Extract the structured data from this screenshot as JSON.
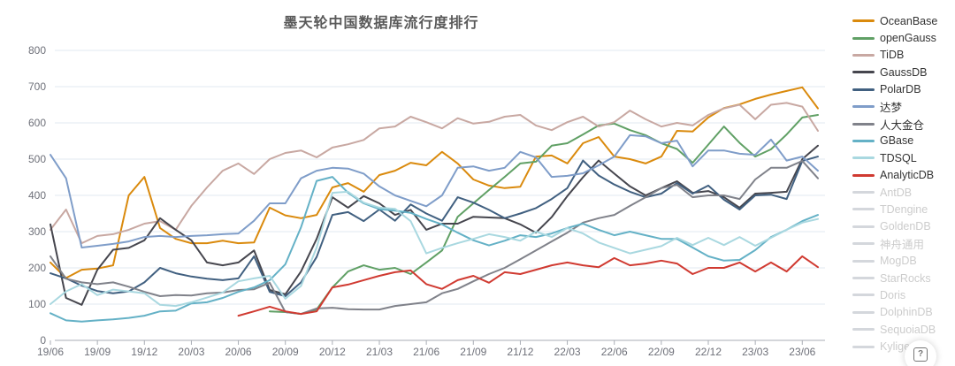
{
  "title": "墨天轮中国数据库流行度排行",
  "help_button": {
    "glyph": "?"
  },
  "axis_style": {
    "label_color": "#6e7079",
    "grid_color": "#e2e8f2",
    "axis_line_color": "#a9adb5"
  },
  "chart_data": {
    "type": "line",
    "title": "墨天轮中国数据库流行度排行",
    "xlabel": "",
    "ylabel": "",
    "ylim": [
      0,
      800
    ],
    "yticks": [
      0,
      100,
      200,
      300,
      400,
      500,
      600,
      700,
      800
    ],
    "grid": true,
    "legend_position": "right",
    "x_tick_labels": [
      "19/06",
      "19/09",
      "19/12",
      "20/03",
      "20/06",
      "20/09",
      "20/12",
      "21/03",
      "21/06",
      "21/09",
      "21/12",
      "22/03",
      "22/06",
      "22/09",
      "22/12",
      "23/03",
      "23/06"
    ],
    "x": [
      "19/06",
      "19/07",
      "19/08",
      "19/09",
      "19/10",
      "19/11",
      "19/12",
      "20/01",
      "20/02",
      "20/03",
      "20/04",
      "20/05",
      "20/06",
      "20/07",
      "20/08",
      "20/09",
      "20/10",
      "20/11",
      "20/12",
      "21/01",
      "21/02",
      "21/03",
      "21/04",
      "21/05",
      "21/06",
      "21/07",
      "21/08",
      "21/09",
      "21/10",
      "21/11",
      "21/12",
      "22/01",
      "22/02",
      "22/03",
      "22/04",
      "22/05",
      "22/06",
      "22/07",
      "22/08",
      "22/09",
      "22/10",
      "22/11",
      "22/12",
      "23/01",
      "23/02",
      "23/03",
      "23/04",
      "23/05",
      "23/06",
      "23/07"
    ],
    "series": [
      {
        "name": "OceanBase",
        "color": "#da8a0d",
        "active": true,
        "values": [
          215,
          172,
          195,
          198,
          207,
          400,
          451,
          310,
          280,
          268,
          268,
          275,
          268,
          270,
          366,
          345,
          337,
          346,
          422,
          434,
          410,
          456,
          468,
          490,
          483,
          520,
          488,
          444,
          427,
          420,
          424,
          507,
          510,
          488,
          544,
          561,
          507,
          500,
          488,
          507,
          578,
          576,
          615,
          641,
          651,
          666,
          678,
          688,
          698,
          640
        ]
      },
      {
        "name": "openGauss",
        "color": "#60a065",
        "active": true,
        "values": [
          null,
          null,
          null,
          null,
          null,
          null,
          null,
          null,
          null,
          null,
          null,
          null,
          null,
          null,
          80,
          78,
          73,
          85,
          146,
          190,
          207,
          195,
          200,
          183,
          215,
          248,
          341,
          378,
          415,
          451,
          488,
          493,
          537,
          544,
          568,
          593,
          598,
          580,
          566,
          544,
          528,
          490,
          540,
          590,
          545,
          507,
          527,
          568,
          615,
          622
        ]
      },
      {
        "name": "TiDB",
        "color": "#c8a8a2",
        "active": true,
        "values": [
          305,
          361,
          268,
          288,
          293,
          305,
          322,
          329,
          305,
          371,
          422,
          468,
          488,
          459,
          500,
          517,
          524,
          505,
          532,
          541,
          553,
          585,
          590,
          617,
          602,
          585,
          613,
          598,
          603,
          617,
          622,
          593,
          580,
          602,
          617,
          590,
          602,
          634,
          610,
          590,
          600,
          593,
          622,
          640,
          650,
          610,
          650,
          655,
          645,
          578
        ]
      },
      {
        "name": "GaussDB",
        "color": "#46464e",
        "active": true,
        "values": [
          320,
          117,
          98,
          195,
          250,
          255,
          276,
          337,
          305,
          276,
          215,
          207,
          215,
          248,
          139,
          127,
          190,
          280,
          395,
          366,
          398,
          378,
          346,
          360,
          305,
          322,
          322,
          341,
          339,
          337,
          320,
          297,
          340,
          398,
          450,
          496,
          460,
          425,
          400,
          420,
          439,
          407,
          412,
          395,
          366,
          405,
          407,
          410,
          500,
          537
        ]
      },
      {
        "name": "PolarDB",
        "color": "#416080",
        "active": true,
        "values": [
          185,
          171,
          151,
          136,
          130,
          135,
          160,
          200,
          185,
          176,
          170,
          166,
          171,
          232,
          134,
          122,
          160,
          230,
          346,
          354,
          329,
          361,
          330,
          375,
          350,
          330,
          395,
          380,
          360,
          337,
          350,
          365,
          390,
          420,
          496,
          455,
          430,
          410,
          395,
          405,
          434,
          405,
          427,
          388,
          361,
          400,
          402,
          390,
          495,
          507
        ]
      },
      {
        "name": "达梦",
        "color": "#7f9dc9",
        "active": true,
        "values": [
          512,
          447,
          256,
          261,
          266,
          273,
          285,
          288,
          285,
          288,
          290,
          293,
          295,
          330,
          378,
          378,
          447,
          468,
          476,
          474,
          460,
          425,
          400,
          385,
          370,
          400,
          476,
          480,
          468,
          476,
          520,
          505,
          451,
          454,
          461,
          483,
          507,
          566,
          563,
          544,
          551,
          480,
          524,
          524,
          515,
          512,
          554,
          496,
          507,
          468
        ]
      },
      {
        "name": "人大金仓",
        "color": "#80828a",
        "active": true,
        "values": [
          232,
          170,
          160,
          155,
          160,
          148,
          134,
          122,
          125,
          124,
          130,
          132,
          139,
          141,
          159,
          78,
          73,
          88,
          90,
          86,
          85,
          85,
          95,
          100,
          105,
          130,
          142,
          163,
          183,
          200,
          224,
          248,
          273,
          297,
          325,
          337,
          346,
          371,
          395,
          420,
          429,
          395,
          400,
          400,
          390,
          444,
          476,
          476,
          495,
          447
        ]
      },
      {
        "name": "GBase",
        "color": "#64b1c6",
        "active": true,
        "values": [
          75,
          55,
          52,
          55,
          58,
          62,
          68,
          80,
          82,
          102,
          105,
          117,
          134,
          146,
          166,
          210,
          312,
          440,
          451,
          407,
          378,
          362,
          358,
          352,
          335,
          320,
          297,
          276,
          262,
          275,
          290,
          285,
          295,
          310,
          322,
          305,
          290,
          300,
          290,
          280,
          280,
          256,
          232,
          220,
          222,
          249,
          285,
          305,
          329,
          346
        ]
      },
      {
        "name": "TDSQL",
        "color": "#a9d8e0",
        "active": true,
        "values": [
          100,
          135,
          155,
          125,
          140,
          135,
          130,
          98,
          95,
          105,
          118,
          132,
          163,
          171,
          178,
          115,
          150,
          256,
          407,
          410,
          380,
          366,
          363,
          329,
          240,
          255,
          268,
          280,
          293,
          285,
          275,
          300,
          285,
          310,
          295,
          270,
          255,
          240,
          250,
          260,
          283,
          263,
          283,
          263,
          285,
          261,
          283,
          305,
          325,
          335
        ]
      },
      {
        "name": "AnalyticDB",
        "color": "#d03a31",
        "active": true,
        "values": [
          null,
          null,
          null,
          null,
          null,
          null,
          null,
          null,
          null,
          null,
          null,
          null,
          68,
          80,
          93,
          80,
          73,
          80,
          146,
          154,
          166,
          178,
          188,
          193,
          155,
          142,
          166,
          178,
          159,
          188,
          183,
          195,
          207,
          215,
          207,
          202,
          227,
          207,
          212,
          220,
          212,
          183,
          200,
          200,
          215,
          190,
          215,
          190,
          232,
          202
        ]
      },
      {
        "name": "AntDB",
        "color": "#d4d7dc",
        "active": false,
        "values": []
      },
      {
        "name": "TDengine",
        "color": "#d4d7dc",
        "active": false,
        "values": []
      },
      {
        "name": "GoldenDB",
        "color": "#d4d7dc",
        "active": false,
        "values": []
      },
      {
        "name": "神舟通用",
        "color": "#d4d7dc",
        "active": false,
        "values": []
      },
      {
        "name": "MogDB",
        "color": "#d4d7dc",
        "active": false,
        "values": []
      },
      {
        "name": "StarRocks",
        "color": "#d4d7dc",
        "active": false,
        "values": []
      },
      {
        "name": "Doris",
        "color": "#d4d7dc",
        "active": false,
        "values": []
      },
      {
        "name": "DolphinDB",
        "color": "#d4d7dc",
        "active": false,
        "values": []
      },
      {
        "name": "SequoiaDB",
        "color": "#d4d7dc",
        "active": false,
        "values": []
      },
      {
        "name": "Kyligence",
        "color": "#d4d7dc",
        "active": false,
        "values": []
      }
    ]
  }
}
